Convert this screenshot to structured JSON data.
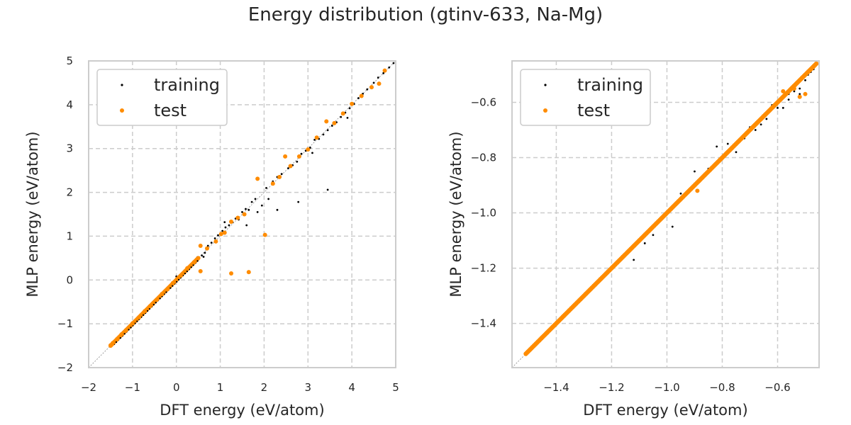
{
  "title": "Energy distribution (gtinv-633, Na-Mg)",
  "colors": {
    "training": "#000000",
    "test": "#ff8c00",
    "grid": "#cccccc",
    "spine": "#cccccc",
    "text": "#262626"
  },
  "chart_data": [
    {
      "type": "scatter",
      "xlabel": "DFT energy (eV/atom)",
      "ylabel": "MLP energy (eV/atom)",
      "xlim": [
        -2,
        5
      ],
      "ylim": [
        -2,
        5
      ],
      "xticks": [
        -2,
        -1,
        0,
        1,
        2,
        3,
        4,
        5
      ],
      "yticks": [
        -2,
        -1,
        0,
        1,
        2,
        3,
        4,
        5
      ],
      "tick_labels_x": [
        "−2",
        "−1",
        "0",
        "1",
        "2",
        "3",
        "4",
        "5"
      ],
      "tick_labels_y": [
        "−2",
        "−1",
        "0",
        "1",
        "2",
        "3",
        "4",
        "5"
      ],
      "grid": true,
      "legend": "top-left",
      "diagonal": true,
      "series": [
        {
          "name": "training",
          "color": "#000000",
          "points": [
            [
              -1.48,
              -1.47
            ],
            [
              -1.4,
              -1.39
            ],
            [
              -1.3,
              -1.3
            ],
            [
              -1.18,
              -1.19
            ],
            [
              -1.05,
              -1.04
            ],
            [
              -0.92,
              -0.93
            ],
            [
              -0.8,
              -0.79
            ],
            [
              -0.66,
              -0.67
            ],
            [
              -0.52,
              -0.52
            ],
            [
              -0.4,
              -0.41
            ],
            [
              -0.28,
              -0.26
            ],
            [
              -0.15,
              -0.16
            ],
            [
              -0.05,
              -0.03
            ],
            [
              0.05,
              0.06
            ],
            [
              0.0,
              0.08
            ],
            [
              0.12,
              0.1
            ],
            [
              0.22,
              0.23
            ],
            [
              0.35,
              0.36
            ],
            [
              0.48,
              0.52
            ],
            [
              0.58,
              0.56
            ],
            [
              0.65,
              0.62
            ],
            [
              0.72,
              0.78
            ],
            [
              0.8,
              0.85
            ],
            [
              0.88,
              0.95
            ],
            [
              0.95,
              1.02
            ],
            [
              1.05,
              1.12
            ],
            [
              1.12,
              1.2
            ],
            [
              1.2,
              1.25
            ],
            [
              1.28,
              1.32
            ],
            [
              1.35,
              1.4
            ],
            [
              1.42,
              1.38
            ],
            [
              1.5,
              1.55
            ],
            [
              1.58,
              1.62
            ],
            [
              1.65,
              1.6
            ],
            [
              1.72,
              1.78
            ],
            [
              1.8,
              1.85
            ],
            [
              1.85,
              1.55
            ],
            [
              1.95,
              1.7
            ],
            [
              2.05,
              2.1
            ],
            [
              2.1,
              1.85
            ],
            [
              2.2,
              2.25
            ],
            [
              2.3,
              2.35
            ],
            [
              2.4,
              2.42
            ],
            [
              2.55,
              2.55
            ],
            [
              2.65,
              2.62
            ],
            [
              2.75,
              2.7
            ],
            [
              2.85,
              2.88
            ],
            [
              2.95,
              2.95
            ],
            [
              3.05,
              3.02
            ],
            [
              3.15,
              3.2
            ],
            [
              3.25,
              3.22
            ],
            [
              3.35,
              3.32
            ],
            [
              3.45,
              3.42
            ],
            [
              3.55,
              3.52
            ],
            [
              3.65,
              3.6
            ],
            [
              3.75,
              3.72
            ],
            [
              3.85,
              3.82
            ],
            [
              3.95,
              3.92
            ],
            [
              4.05,
              4.02
            ],
            [
              4.15,
              4.15
            ],
            [
              4.25,
              4.25
            ],
            [
              4.35,
              4.35
            ],
            [
              4.5,
              4.5
            ],
            [
              4.6,
              4.62
            ],
            [
              4.72,
              4.72
            ],
            [
              4.85,
              4.85
            ],
            [
              4.95,
              4.95
            ],
            [
              3.45,
              2.06
            ],
            [
              2.78,
              1.78
            ],
            [
              1.6,
              1.25
            ],
            [
              1.1,
              1.32
            ],
            [
              0.62,
              0.53
            ],
            [
              2.3,
              1.6
            ],
            [
              3.1,
              2.9
            ],
            [
              3.9,
              3.7
            ]
          ]
        },
        {
          "name": "test",
          "color": "#ff8c00",
          "points": [
            [
              -1.5,
              -1.49
            ],
            [
              -1.45,
              -1.44
            ],
            [
              -1.35,
              -1.35
            ],
            [
              -1.25,
              -1.24
            ],
            [
              -1.15,
              -1.15
            ],
            [
              -1.0,
              -0.99
            ],
            [
              -0.85,
              -0.85
            ],
            [
              -0.72,
              -0.71
            ],
            [
              -0.6,
              -0.6
            ],
            [
              -0.45,
              -0.45
            ],
            [
              -0.33,
              -0.32
            ],
            [
              -0.2,
              -0.21
            ],
            [
              -0.08,
              -0.07
            ],
            [
              0.1,
              0.1
            ],
            [
              0.25,
              0.27
            ],
            [
              0.4,
              0.4
            ],
            [
              0.55,
              0.78
            ],
            [
              0.55,
              0.2
            ],
            [
              0.7,
              0.72
            ],
            [
              0.9,
              0.88
            ],
            [
              1.02,
              1.05
            ],
            [
              1.1,
              1.08
            ],
            [
              1.25,
              1.33
            ],
            [
              1.4,
              1.42
            ],
            [
              1.55,
              1.5
            ],
            [
              1.25,
              0.15
            ],
            [
              1.65,
              0.18
            ],
            [
              1.85,
              2.31
            ],
            [
              2.02,
              1.03
            ],
            [
              2.2,
              2.2
            ],
            [
              2.35,
              2.35
            ],
            [
              2.48,
              2.82
            ],
            [
              2.6,
              2.6
            ],
            [
              2.8,
              2.82
            ],
            [
              3.0,
              2.98
            ],
            [
              3.2,
              3.25
            ],
            [
              3.42,
              3.62
            ],
            [
              3.6,
              3.58
            ],
            [
              3.8,
              3.8
            ],
            [
              4.0,
              4.02
            ],
            [
              4.22,
              4.2
            ],
            [
              4.45,
              4.4
            ],
            [
              4.62,
              4.48
            ],
            [
              4.75,
              4.78
            ]
          ]
        }
      ]
    },
    {
      "type": "scatter",
      "xlabel": "DFT energy (eV/atom)",
      "ylabel": "MLP energy (eV/atom)",
      "xlim": [
        -1.56,
        -0.45
      ],
      "ylim": [
        -1.56,
        -0.45
      ],
      "xticks": [
        -1.4,
        -1.2,
        -1.0,
        -0.8,
        -0.6
      ],
      "yticks": [
        -1.4,
        -1.2,
        -1.0,
        -0.8,
        -0.6
      ],
      "tick_labels_x": [
        "−1.4",
        "−1.2",
        "−1.0",
        "−0.8",
        "−0.6"
      ],
      "tick_labels_y": [
        "−1.4",
        "−1.2",
        "−1.0",
        "−0.8",
        "−0.6"
      ],
      "grid": true,
      "legend": "top-left",
      "diagonal": true,
      "series": [
        {
          "name": "training",
          "color": "#000000",
          "points": [
            [
              -1.05,
              -1.08
            ],
            [
              -0.98,
              -1.05
            ],
            [
              -1.08,
              -1.11
            ],
            [
              -1.12,
              -1.17
            ],
            [
              -0.95,
              -0.93
            ],
            [
              -0.9,
              -0.85
            ],
            [
              -0.85,
              -0.84
            ],
            [
              -0.82,
              -0.76
            ],
            [
              -0.78,
              -0.75
            ],
            [
              -0.75,
              -0.78
            ],
            [
              -0.72,
              -0.73
            ],
            [
              -0.7,
              -0.69
            ],
            [
              -0.68,
              -0.7
            ],
            [
              -0.66,
              -0.68
            ],
            [
              -0.64,
              -0.66
            ],
            [
              -0.62,
              -0.61
            ],
            [
              -0.6,
              -0.62
            ],
            [
              -0.58,
              -0.62
            ],
            [
              -0.56,
              -0.59
            ],
            [
              -0.54,
              -0.56
            ],
            [
              -0.52,
              -0.55
            ],
            [
              -0.5,
              -0.52
            ],
            [
              -0.49,
              -0.5
            ],
            [
              -0.48,
              -0.49
            ],
            [
              -0.47,
              -0.48
            ],
            [
              -0.52,
              -0.57
            ],
            [
              -0.56,
              -0.57
            ]
          ]
        },
        {
          "name": "test",
          "color": "#ff8c00",
          "points": [
            [
              -0.89,
              -0.92
            ],
            [
              -0.52,
              -0.58
            ],
            [
              -0.5,
              -0.57
            ],
            [
              -0.54,
              -0.55
            ],
            [
              -0.58,
              -0.56
            ]
          ]
        }
      ],
      "dense_band": {
        "x_from": -1.51,
        "x_to": -0.46,
        "color": "#ff8c00"
      }
    }
  ]
}
